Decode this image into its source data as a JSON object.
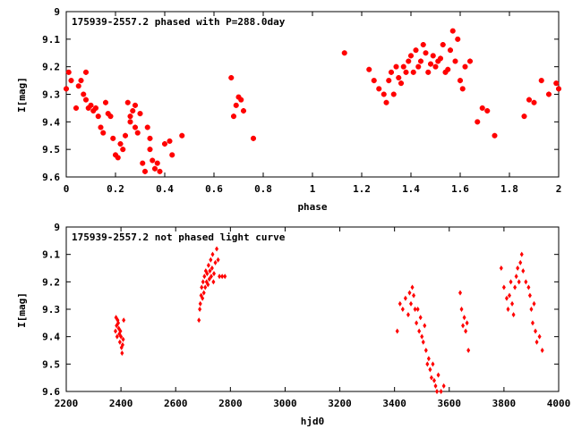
{
  "chart_data": [
    {
      "type": "scatter",
      "title": "175939-2557.2 phased with P=288.0day",
      "xlabel": "phase",
      "ylabel": "I[mag]",
      "xlim": [
        0,
        2
      ],
      "ylim": [
        9.6,
        9
      ],
      "y_inverted": true,
      "xticks": [
        "0",
        "0.2",
        "0.4",
        "0.6",
        "0.8",
        "1",
        "1.2",
        "1.4",
        "1.6",
        "1.8",
        "2"
      ],
      "yticks": [
        "9",
        "9.1",
        "9.2",
        "9.3",
        "9.4",
        "9.5",
        "9.6"
      ],
      "marker_color": "#ff0000",
      "series": [
        {
          "x": [
            0.0,
            0.01,
            0.02,
            0.04,
            0.05,
            0.06,
            0.07,
            0.08,
            0.08,
            0.09,
            0.1,
            0.11,
            0.12,
            0.13,
            0.14,
            0.15,
            0.16,
            0.17,
            0.18,
            0.19,
            0.2,
            0.21,
            0.22,
            0.23,
            0.24,
            0.25,
            0.26,
            0.26,
            0.27,
            0.28,
            0.28,
            0.29,
            0.3,
            0.31,
            0.32,
            0.33,
            0.34,
            0.34,
            0.35,
            0.36,
            0.37,
            0.38,
            0.4,
            0.42,
            0.43,
            0.47,
            0.67,
            0.68,
            0.69,
            0.7,
            0.71,
            0.72,
            0.76,
            1.13,
            1.23,
            1.25,
            1.27,
            1.29,
            1.3,
            1.31,
            1.32,
            1.33,
            1.34,
            1.35,
            1.36,
            1.37,
            1.38,
            1.39,
            1.4,
            1.41,
            1.42,
            1.43,
            1.44,
            1.45,
            1.46,
            1.47,
            1.48,
            1.49,
            1.5,
            1.51,
            1.52,
            1.53,
            1.54,
            1.55,
            1.56,
            1.57,
            1.58,
            1.59,
            1.6,
            1.61,
            1.62,
            1.64,
            1.67,
            1.69,
            1.71,
            1.74,
            1.86,
            1.88,
            1.9,
            1.93,
            1.96,
            1.99,
            2.0
          ],
          "y": [
            9.28,
            9.22,
            9.25,
            9.35,
            9.27,
            9.25,
            9.3,
            9.22,
            9.32,
            9.35,
            9.34,
            9.36,
            9.35,
            9.38,
            9.42,
            9.44,
            9.33,
            9.37,
            9.38,
            9.46,
            9.52,
            9.53,
            9.48,
            9.5,
            9.45,
            9.33,
            9.38,
            9.4,
            9.36,
            9.34,
            9.42,
            9.44,
            9.37,
            9.55,
            9.58,
            9.42,
            9.46,
            9.5,
            9.54,
            9.57,
            9.55,
            9.58,
            9.48,
            9.47,
            9.52,
            9.45,
            9.24,
            9.38,
            9.34,
            9.31,
            9.32,
            9.36,
            9.46,
            9.15,
            9.21,
            9.25,
            9.28,
            9.3,
            9.33,
            9.25,
            9.22,
            9.3,
            9.2,
            9.24,
            9.26,
            9.2,
            9.22,
            9.18,
            9.16,
            9.22,
            9.14,
            9.2,
            9.18,
            9.12,
            9.15,
            9.22,
            9.19,
            9.16,
            9.2,
            9.18,
            9.17,
            9.12,
            9.22,
            9.21,
            9.14,
            9.07,
            9.18,
            9.1,
            9.25,
            9.28,
            9.2,
            9.18,
            9.4,
            9.35,
            9.36,
            9.45,
            9.38,
            9.32,
            9.33,
            9.25,
            9.3,
            9.26,
            9.28
          ]
        }
      ]
    },
    {
      "type": "scatter",
      "title": "175939-2557.2 not phased light curve",
      "xlabel": "hjd0",
      "ylabel": "I[mag]",
      "xlim": [
        2200,
        4000
      ],
      "ylim": [
        9.6,
        9
      ],
      "y_inverted": true,
      "xticks": [
        "2200",
        "2400",
        "2600",
        "2800",
        "3000",
        "3200",
        "3400",
        "3600",
        "3800",
        "4000"
      ],
      "yticks": [
        "9",
        "9.1",
        "9.2",
        "9.3",
        "9.4",
        "9.5",
        "9.6"
      ],
      "marker_color": "#ff0000",
      "series": [
        {
          "x": [
            2380,
            2382,
            2384,
            2386,
            2388,
            2390,
            2392,
            2394,
            2396,
            2398,
            2400,
            2402,
            2404,
            2406,
            2408,
            2410,
            2685,
            2688,
            2690,
            2693,
            2695,
            2698,
            2700,
            2703,
            2705,
            2708,
            2710,
            2713,
            2715,
            2718,
            2720,
            2723,
            2725,
            2728,
            2730,
            2733,
            2735,
            2738,
            2740,
            2745,
            2750,
            2755,
            2760,
            2770,
            2780,
            3410,
            3420,
            3430,
            3440,
            3450,
            3455,
            3460,
            3465,
            3470,
            3475,
            3480,
            3485,
            3490,
            3495,
            3500,
            3505,
            3510,
            3515,
            3520,
            3525,
            3530,
            3535,
            3540,
            3545,
            3550,
            3555,
            3560,
            3570,
            3580,
            3640,
            3645,
            3650,
            3655,
            3660,
            3665,
            3670,
            3790,
            3800,
            3810,
            3815,
            3820,
            3825,
            3830,
            3835,
            3840,
            3845,
            3850,
            3855,
            3860,
            3865,
            3870,
            3880,
            3890,
            3895,
            3900,
            3905,
            3910,
            3915,
            3920,
            3930,
            3940
          ],
          "y": [
            9.38,
            9.33,
            9.36,
            9.4,
            9.34,
            9.35,
            9.37,
            9.39,
            9.42,
            9.38,
            9.4,
            9.44,
            9.46,
            9.43,
            9.41,
            9.34,
            9.34,
            9.3,
            9.28,
            9.25,
            9.22,
            9.26,
            9.2,
            9.24,
            9.18,
            9.22,
            9.16,
            9.2,
            9.17,
            9.21,
            9.14,
            9.19,
            9.16,
            9.12,
            9.18,
            9.15,
            9.1,
            9.2,
            9.17,
            9.13,
            9.08,
            9.12,
            9.18,
            9.18,
            9.18,
            9.38,
            9.28,
            9.3,
            9.26,
            9.32,
            9.24,
            9.28,
            9.22,
            9.25,
            9.3,
            9.35,
            9.3,
            9.38,
            9.33,
            9.4,
            9.42,
            9.36,
            9.45,
            9.5,
            9.48,
            9.52,
            9.55,
            9.5,
            9.56,
            9.58,
            9.6,
            9.54,
            9.6,
            9.58,
            9.24,
            9.3,
            9.36,
            9.33,
            9.38,
            9.35,
            9.45,
            9.15,
            9.22,
            9.26,
            9.3,
            9.25,
            9.2,
            9.28,
            9.32,
            9.22,
            9.18,
            9.15,
            9.2,
            9.13,
            9.1,
            9.16,
            9.2,
            9.22,
            9.25,
            9.3,
            9.35,
            9.28,
            9.38,
            9.42,
            9.4,
            9.45
          ]
        }
      ]
    }
  ]
}
